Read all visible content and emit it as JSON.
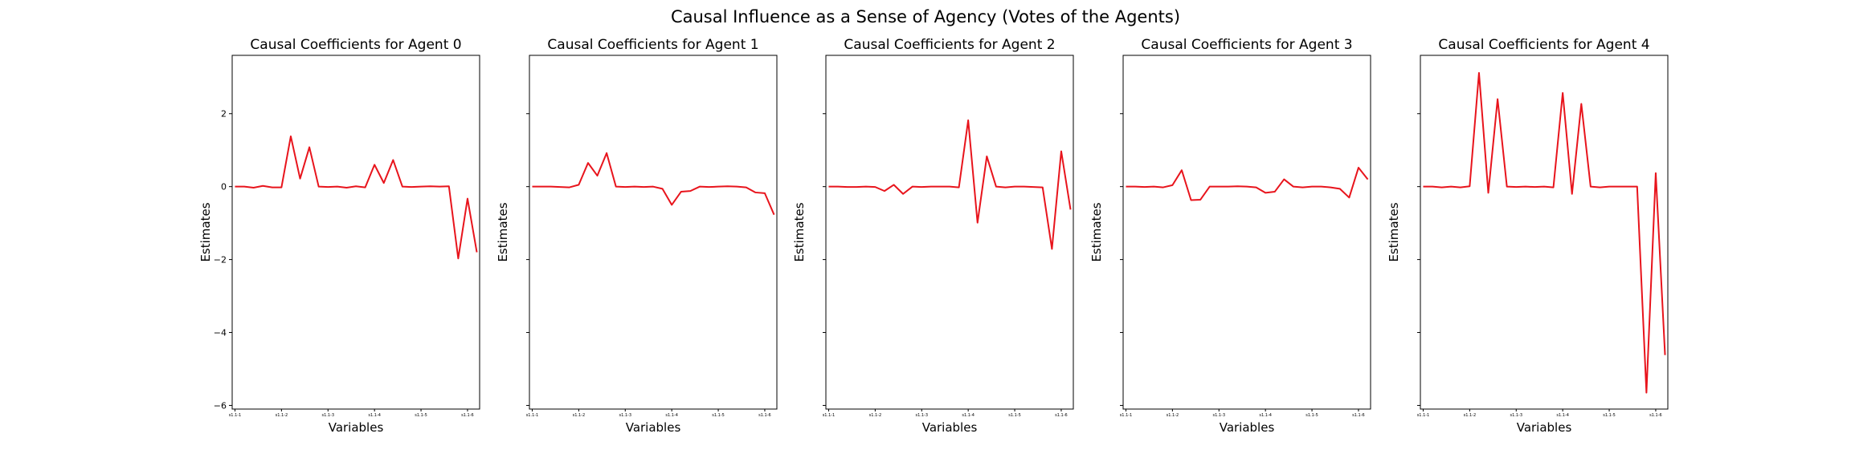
{
  "figure": {
    "title": "Causal Influence as a Sense of Agency (Votes of the Agents)",
    "line_color": "#e8141c"
  },
  "chart_data": [
    {
      "type": "line",
      "title": "Causal Coefficients for Agent 0",
      "xlabel": "Variables",
      "ylabel": "Estimates",
      "ylim": [
        -6.1,
        3.6
      ],
      "yticks": [
        2,
        0,
        -2,
        -4,
        -6
      ],
      "ytick_labels": [
        "2",
        "0",
        "−2",
        "−4",
        "−6"
      ],
      "show_ytick_labels": true,
      "xticks": [
        0,
        5,
        10,
        15,
        20,
        25
      ],
      "xtick_labels": [
        "s1.1-1",
        "s1.1-2",
        "s1.1-3",
        "s1.1-4",
        "s1.1-5",
        "s1.1-6"
      ],
      "grid": false,
      "series": [
        {
          "x": [
            0,
            1,
            2,
            3,
            4,
            5,
            6,
            7,
            8,
            9,
            10,
            11,
            12,
            13,
            14,
            15,
            16,
            17,
            18,
            19,
            20,
            21,
            22,
            23,
            24,
            25,
            26
          ],
          "y": [
            0,
            0,
            -0.03,
            0.02,
            -0.02,
            -0.02,
            1.38,
            0.22,
            1.08,
            0.0,
            -0.01,
            0.0,
            -0.03,
            0.01,
            -0.02,
            0.6,
            0.1,
            0.73,
            0.0,
            -0.01,
            0.0,
            0.01,
            0.0,
            0.01,
            -1.97,
            -0.33,
            -1.8
          ]
        }
      ]
    },
    {
      "type": "line",
      "title": "Causal Coefficients for Agent 1",
      "xlabel": "Variables",
      "ylabel": "Estimates",
      "ylim": [
        -6.1,
        3.6
      ],
      "yticks": [
        2,
        0,
        -2,
        -4,
        -6
      ],
      "ytick_labels": [
        "2",
        "0",
        "−2",
        "−4",
        "−6"
      ],
      "show_ytick_labels": false,
      "xticks": [
        0,
        5,
        10,
        15,
        20,
        25
      ],
      "xtick_labels": [
        "s1.1-1",
        "s1.1-2",
        "s1.1-3",
        "s1.1-4",
        "s1.1-5",
        "s1.1-6"
      ],
      "grid": false,
      "series": [
        {
          "x": [
            0,
            1,
            2,
            3,
            4,
            5,
            6,
            7,
            8,
            9,
            10,
            11,
            12,
            13,
            14,
            15,
            16,
            17,
            18,
            19,
            20,
            21,
            22,
            23,
            24,
            25,
            26
          ],
          "y": [
            0,
            0,
            0,
            -0.01,
            -0.02,
            0.05,
            0.65,
            0.3,
            0.92,
            0.0,
            -0.01,
            0.0,
            -0.01,
            0.0,
            -0.06,
            -0.5,
            -0.14,
            -0.12,
            0.0,
            -0.01,
            0.0,
            0.01,
            0.0,
            -0.02,
            -0.16,
            -0.18,
            -0.77
          ]
        }
      ]
    },
    {
      "type": "line",
      "title": "Causal Coefficients for Agent 2",
      "xlabel": "Variables",
      "ylabel": "Estimates",
      "ylim": [
        -6.1,
        3.6
      ],
      "yticks": [
        2,
        0,
        -2,
        -4,
        -6
      ],
      "ytick_labels": [
        "2",
        "0",
        "−2",
        "−4",
        "−6"
      ],
      "show_ytick_labels": false,
      "xticks": [
        0,
        5,
        10,
        15,
        20,
        25
      ],
      "xtick_labels": [
        "s1.1-1",
        "s1.1-2",
        "s1.1-3",
        "s1.1-4",
        "s1.1-5",
        "s1.1-6"
      ],
      "grid": false,
      "series": [
        {
          "x": [
            0,
            1,
            2,
            3,
            4,
            5,
            6,
            7,
            8,
            9,
            10,
            11,
            12,
            13,
            14,
            15,
            16,
            17,
            18,
            19,
            20,
            21,
            22,
            23,
            24,
            25,
            26
          ],
          "y": [
            0,
            0,
            -0.01,
            -0.01,
            0.0,
            -0.01,
            -0.12,
            0.05,
            -0.2,
            0.0,
            -0.01,
            0.0,
            0.0,
            0.0,
            -0.02,
            1.82,
            -0.99,
            0.83,
            0.0,
            -0.02,
            0.0,
            0.0,
            -0.01,
            -0.02,
            -1.71,
            0.97,
            -0.63
          ]
        }
      ]
    },
    {
      "type": "line",
      "title": "Causal Coefficients for Agent 3",
      "xlabel": "Variables",
      "ylabel": "Estimates",
      "ylim": [
        -6.1,
        3.6
      ],
      "yticks": [
        2,
        0,
        -2,
        -4,
        -6
      ],
      "ytick_labels": [
        "2",
        "0",
        "−2",
        "−4",
        "−6"
      ],
      "show_ytick_labels": false,
      "xticks": [
        0,
        5,
        10,
        15,
        20,
        25
      ],
      "xtick_labels": [
        "s1.1-1",
        "s1.1-2",
        "s1.1-3",
        "s1.1-4",
        "s1.1-5",
        "s1.1-6"
      ],
      "grid": false,
      "series": [
        {
          "x": [
            0,
            1,
            2,
            3,
            4,
            5,
            6,
            7,
            8,
            9,
            10,
            11,
            12,
            13,
            14,
            15,
            16,
            17,
            18,
            19,
            20,
            21,
            22,
            23,
            24,
            25,
            26
          ],
          "y": [
            0,
            0,
            -0.01,
            0.0,
            -0.02,
            0.04,
            0.45,
            -0.37,
            -0.36,
            0.0,
            0.0,
            0.0,
            0.01,
            0.0,
            -0.02,
            -0.17,
            -0.14,
            0.2,
            0.0,
            -0.02,
            0.0,
            0.0,
            -0.02,
            -0.06,
            -0.3,
            0.52,
            0.2
          ]
        }
      ]
    },
    {
      "type": "line",
      "title": "Causal Coefficients for Agent 4",
      "xlabel": "Variables",
      "ylabel": "Estimates",
      "ylim": [
        -6.1,
        3.6
      ],
      "yticks": [
        2,
        0,
        -2,
        -4,
        -6
      ],
      "ytick_labels": [
        "2",
        "0",
        "−2",
        "−4",
        "−6"
      ],
      "show_ytick_labels": false,
      "xticks": [
        0,
        5,
        10,
        15,
        20,
        25
      ],
      "xtick_labels": [
        "s1.1-1",
        "s1.1-2",
        "s1.1-3",
        "s1.1-4",
        "s1.1-5",
        "s1.1-6"
      ],
      "grid": false,
      "series": [
        {
          "x": [
            0,
            1,
            2,
            3,
            4,
            5,
            6,
            7,
            8,
            9,
            10,
            11,
            12,
            13,
            14,
            15,
            16,
            17,
            18,
            19,
            20,
            21,
            22,
            23,
            24,
            25,
            26
          ],
          "y": [
            0,
            0,
            -0.02,
            0.0,
            -0.02,
            0.01,
            3.12,
            -0.17,
            2.4,
            0.0,
            -0.01,
            0.0,
            -0.01,
            0.0,
            -0.02,
            2.57,
            -0.2,
            2.27,
            0.0,
            -0.02,
            0.0,
            0.0,
            0.0,
            0.0,
            -5.65,
            0.37,
            -4.62
          ]
        }
      ]
    }
  ]
}
